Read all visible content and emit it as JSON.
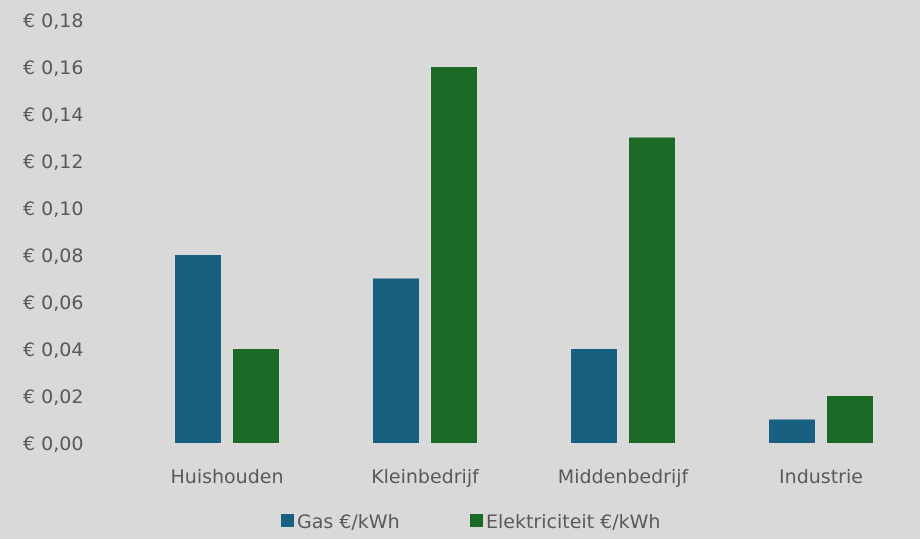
{
  "chart_data": {
    "type": "bar",
    "title": "",
    "xlabel": "",
    "ylabel": "",
    "categories": [
      "Huishouden",
      "Kleinbedrijf",
      "Middenbedrijf",
      "Industrie"
    ],
    "series": [
      {
        "name": "Gas €/kWh",
        "values": [
          0.08,
          0.07,
          0.04,
          0.01
        ],
        "color": "#17607f"
      },
      {
        "name": "Elektriciteit €/kWh",
        "values": [
          0.04,
          0.16,
          0.13,
          0.02
        ],
        "color": "#1b6b27"
      }
    ],
    "ylim": [
      0,
      0.18
    ],
    "yticks": [
      "€ 0,00",
      "€ 0,02",
      "€ 0,04",
      "€ 0,06",
      "€ 0,08",
      "€ 0,10",
      "€ 0,12",
      "€ 0,14",
      "€ 0,16",
      "€ 0,18"
    ],
    "grid": false,
    "legend_position": "bottom",
    "background": "#d9d9d9"
  }
}
